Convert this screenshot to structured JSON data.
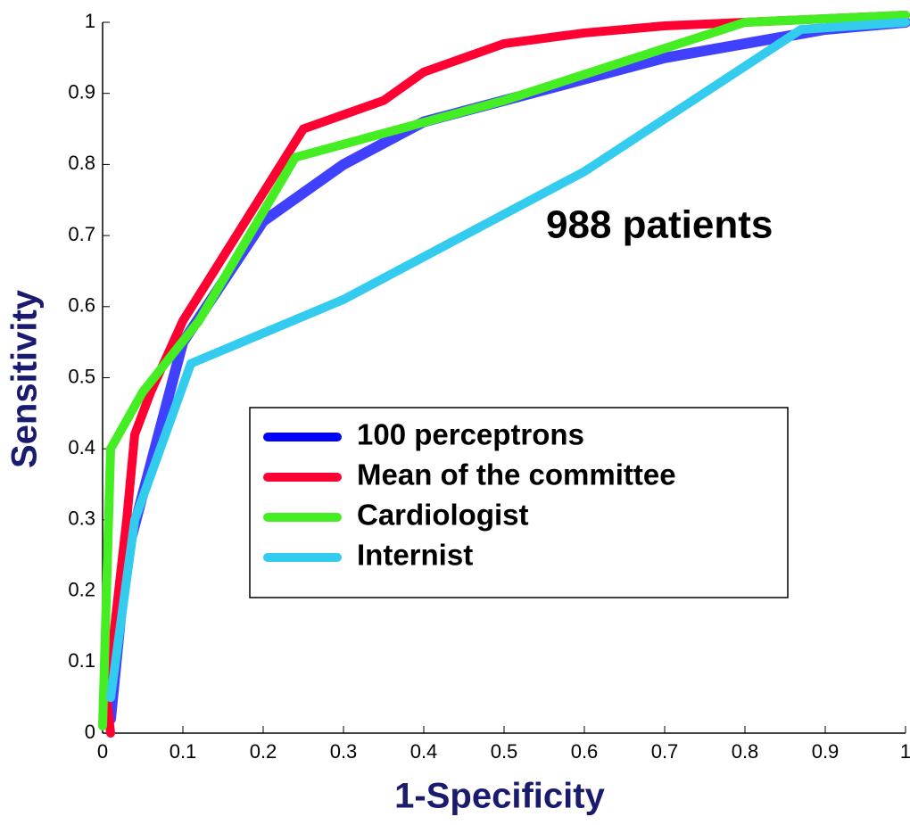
{
  "chart_data": {
    "type": "line",
    "xlabel": "1-Specificity",
    "ylabel": "Sensitivity",
    "annotation": "988 patients",
    "xlim": [
      0,
      1
    ],
    "ylim": [
      0,
      1
    ],
    "xticks": [
      0,
      0.1,
      0.2,
      0.3,
      0.4,
      0.5,
      0.6,
      0.7,
      0.8,
      0.9,
      1
    ],
    "yticks": [
      0,
      0.1,
      0.2,
      0.3,
      0.4,
      0.5,
      0.6,
      0.7,
      0.8,
      0.9,
      1
    ],
    "series": [
      {
        "name": "100 perceptrons",
        "color": "#0000ff",
        "x": [
          0.01,
          0.03,
          0.1,
          0.2,
          0.3,
          0.4,
          0.5,
          0.6,
          0.7,
          0.8,
          0.9,
          1
        ],
        "values": [
          0.02,
          0.25,
          0.55,
          0.72,
          0.8,
          0.86,
          0.89,
          0.92,
          0.95,
          0.97,
          0.99,
          1.0
        ]
      },
      {
        "name": "Mean of the committee",
        "color": "#ff0033",
        "x": [
          0.01,
          0.005,
          0.01,
          0.03,
          0.04,
          0.06,
          0.1,
          0.15,
          0.2,
          0.25,
          0.3,
          0.35,
          0.4,
          0.5,
          0.6,
          0.7,
          0.8,
          0.9,
          1
        ],
        "values": [
          0,
          0.05,
          0.1,
          0.3,
          0.42,
          0.48,
          0.58,
          0.67,
          0.76,
          0.85,
          0.87,
          0.89,
          0.93,
          0.97,
          0.985,
          0.995,
          1.0,
          1.005,
          1.01
        ]
      },
      {
        "name": "Cardiologist",
        "color": "#44ee22",
        "x": [
          0,
          0.01,
          0.05,
          0.12,
          0.24,
          0.5,
          0.8,
          1
        ],
        "values": [
          0.01,
          0.4,
          0.48,
          0.58,
          0.81,
          0.89,
          1.0,
          1.01
        ]
      },
      {
        "name": "Internist",
        "color": "#33ccee",
        "x": [
          0.01,
          0.04,
          0.11,
          0.3,
          0.6,
          0.87,
          1
        ],
        "values": [
          0.05,
          0.3,
          0.52,
          0.61,
          0.79,
          0.99,
          1.0
        ]
      }
    ]
  }
}
